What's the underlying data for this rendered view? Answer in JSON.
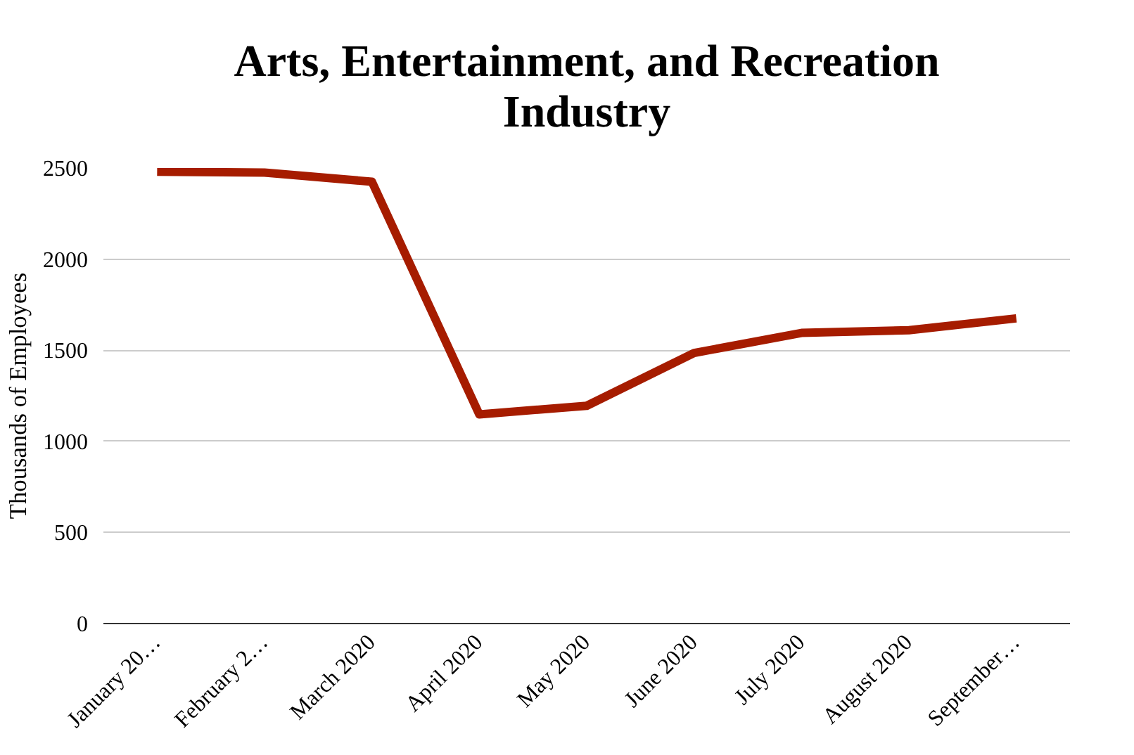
{
  "chart_data": {
    "type": "line",
    "title": "Arts, Entertainment, and Recreation Industry",
    "ylabel": "Thousands of Employees",
    "categories": [
      "January 20…",
      "February 2…",
      "March 2020",
      "April 2020",
      "May 2020",
      "June 2020",
      "July 2020",
      "August 2020",
      "September…"
    ],
    "series": [
      {
        "color": "#a61c00",
        "values": [
          2480,
          2475,
          2425,
          1148,
          1195,
          1485,
          1595,
          1610,
          1675
        ]
      }
    ],
    "ylim": [
      0,
      2500
    ],
    "yticks": [
      0,
      500,
      1000,
      1500,
      2000,
      2500
    ],
    "grid": "y",
    "marker": "none",
    "line_style": "solid"
  }
}
